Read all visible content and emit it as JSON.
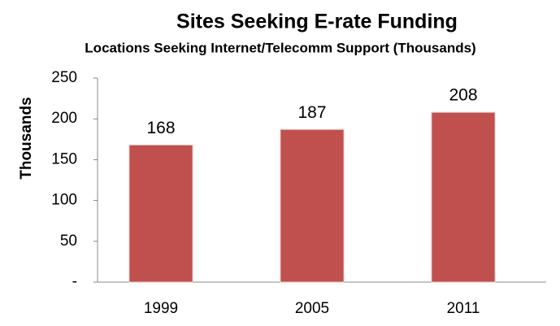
{
  "chart_data": {
    "type": "bar",
    "title": "Sites Seeking E-rate Funding",
    "subtitle": "Locations Seeking Internet/Telecomm Support (Thousands)",
    "y_label": "Thousands",
    "categories": [
      "1999",
      "2005",
      "2011"
    ],
    "values": [
      168,
      187,
      208
    ],
    "color": "#c0504d",
    "ylim": [
      0,
      250
    ],
    "yticks": [
      {
        "value": 0,
        "label": "-"
      },
      50,
      100,
      150,
      200,
      250
    ],
    "grid": false
  }
}
